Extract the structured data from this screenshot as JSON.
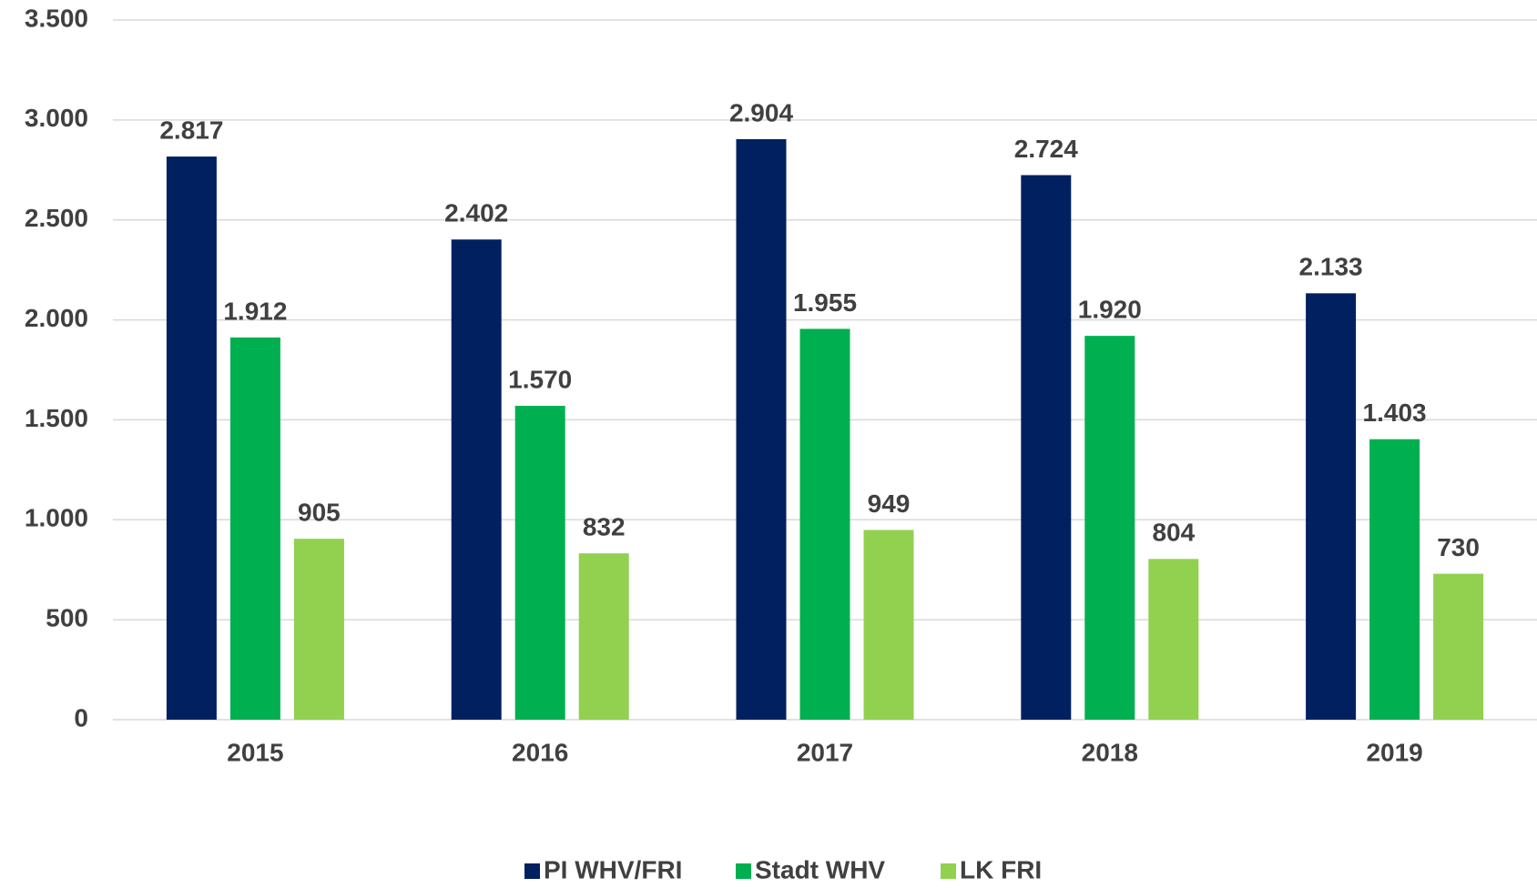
{
  "chart_data": {
    "type": "bar",
    "categories": [
      "2015",
      "2016",
      "2017",
      "2018",
      "2019"
    ],
    "series": [
      {
        "name": "PI WHV/FRI",
        "color": "#002060",
        "values": [
          2817,
          2402,
          2904,
          2724,
          2133
        ],
        "value_labels": [
          "2.817",
          "2.402",
          "2.904",
          "2.724",
          "2.133"
        ]
      },
      {
        "name": "Stadt WHV",
        "color": "#00b050",
        "values": [
          1912,
          1570,
          1955,
          1920,
          1403
        ],
        "value_labels": [
          "1.912",
          "1.570",
          "1.955",
          "1.920",
          "1.403"
        ]
      },
      {
        "name": "LK FRI",
        "color": "#92d050",
        "values": [
          905,
          832,
          949,
          804,
          730
        ],
        "value_labels": [
          "905",
          "832",
          "949",
          "804",
          "730"
        ]
      }
    ],
    "ylim": [
      0,
      3500
    ],
    "yticks": [
      0,
      500,
      {
        "value": 1000,
        "label": "1.000"
      },
      {
        "value": 1500,
        "label": "1.500"
      },
      {
        "value": 2000,
        "label": "2.000"
      },
      {
        "value": 2500,
        "label": "2.500"
      },
      {
        "value": 3000,
        "label": "3.000"
      },
      {
        "value": 3500,
        "label": "3.500"
      }
    ],
    "grid": true,
    "legend": "bottom"
  }
}
